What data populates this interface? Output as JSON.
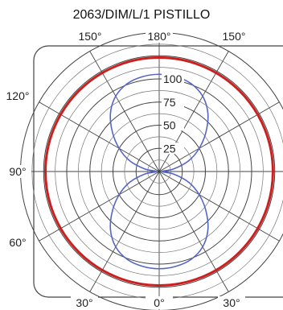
{
  "chart_data": {
    "type": "polar",
    "title": "2063/DIM/L/1  PISTILLO",
    "radial_ticks": [
      25,
      50,
      75,
      100
    ],
    "radial_tick_labels": [
      "25",
      "50",
      "75",
      "100"
    ],
    "angle_labels": [
      {
        "text": "150°",
        "angle": -150
      },
      {
        "text": "180°",
        "angle": 180
      },
      {
        "text": "150°",
        "angle": 150
      },
      {
        "text": "120°",
        "angle": -120
      },
      {
        "text": "90°",
        "angle": -90
      },
      {
        "text": "60°",
        "angle": -60
      },
      {
        "text": "30°",
        "angle": -30
      },
      {
        "text": "0°",
        "angle": 0
      },
      {
        "text": "30°",
        "angle": 30
      }
    ],
    "series": [
      {
        "color": "#cc1f1f",
        "points": [
          {
            "angle": 0,
            "value": 123
          },
          {
            "angle": 90,
            "value": 123
          },
          {
            "angle": 180,
            "value": 123
          },
          {
            "angle": 270,
            "value": 123
          }
        ]
      },
      {
        "color": "#5566c8",
        "points": [
          {
            "angle": 0,
            "value": 105
          },
          {
            "angle": 10,
            "value": 104
          },
          {
            "angle": 20,
            "value": 101
          },
          {
            "angle": 30,
            "value": 94
          },
          {
            "angle": 40,
            "value": 82
          },
          {
            "angle": 50,
            "value": 66
          },
          {
            "angle": 60,
            "value": 50
          },
          {
            "angle": 70,
            "value": 34
          },
          {
            "angle": 80,
            "value": 16
          },
          {
            "angle": 90,
            "value": 3
          },
          {
            "angle": 100,
            "value": 16
          },
          {
            "angle": 110,
            "value": 34
          },
          {
            "angle": 120,
            "value": 50
          },
          {
            "angle": 130,
            "value": 66
          },
          {
            "angle": 140,
            "value": 82
          },
          {
            "angle": 150,
            "value": 94
          },
          {
            "angle": 160,
            "value": 101
          },
          {
            "angle": 170,
            "value": 104
          },
          {
            "angle": 180,
            "value": 105
          },
          {
            "angle": 190,
            "value": 104
          },
          {
            "angle": 200,
            "value": 101
          },
          {
            "angle": 210,
            "value": 94
          },
          {
            "angle": 220,
            "value": 82
          },
          {
            "angle": 230,
            "value": 66
          },
          {
            "angle": 240,
            "value": 50
          },
          {
            "angle": 250,
            "value": 34
          },
          {
            "angle": 260,
            "value": 16
          },
          {
            "angle": 270,
            "value": 3
          },
          {
            "angle": 280,
            "value": 16
          },
          {
            "angle": 290,
            "value": 34
          },
          {
            "angle": 300,
            "value": 50
          },
          {
            "angle": 310,
            "value": 66
          },
          {
            "angle": 320,
            "value": 82
          },
          {
            "angle": 330,
            "value": 94
          },
          {
            "angle": 340,
            "value": 101
          },
          {
            "angle": 350,
            "value": 104
          }
        ]
      }
    ]
  }
}
